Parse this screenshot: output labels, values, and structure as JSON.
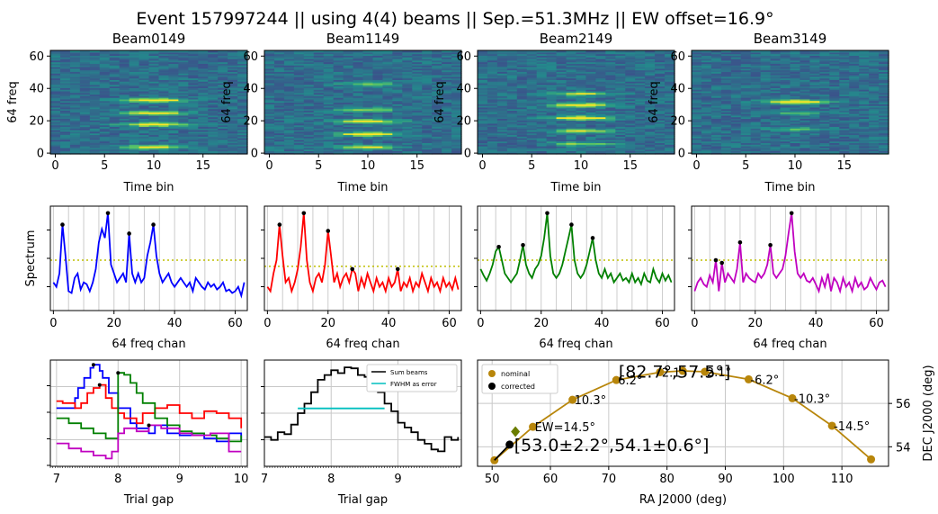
{
  "title": "Event 157997244 || using 4(4) beams || Sep.=51.3MHz || EW offset=16.9°",
  "waterfalls": [
    {
      "name": "Beam0149",
      "xlabel": "Time bin",
      "ylabel": "64 freq",
      "xticks": [
        0,
        5,
        10,
        15
      ],
      "yticks": [
        0,
        20,
        40,
        60
      ],
      "bands": [
        {
          "f": 4,
          "s": 0.8
        },
        {
          "f": 18,
          "s": 0.9
        },
        {
          "f": 25,
          "s": 0.85
        },
        {
          "f": 33,
          "s": 0.95
        }
      ]
    },
    {
      "name": "Beam1149",
      "xlabel": "Time bin",
      "ylabel": "64 freq",
      "xticks": [
        0,
        5,
        10,
        15
      ],
      "yticks": [
        0,
        20,
        40,
        60
      ],
      "bands": [
        {
          "f": 4,
          "s": 0.7
        },
        {
          "f": 12,
          "s": 0.9
        },
        {
          "f": 20,
          "s": 0.85
        },
        {
          "f": 27,
          "s": 0.5
        },
        {
          "f": 43,
          "s": 0.4
        }
      ]
    },
    {
      "name": "Beam2149",
      "xlabel": "Time bin",
      "ylabel": "64 freq",
      "xticks": [
        0,
        5,
        10,
        15
      ],
      "yticks": [
        0,
        20,
        40,
        60
      ],
      "bands": [
        {
          "f": 6,
          "s": 0.5
        },
        {
          "f": 14,
          "s": 0.6
        },
        {
          "f": 22,
          "s": 0.9
        },
        {
          "f": 30,
          "s": 0.9
        },
        {
          "f": 37,
          "s": 0.6
        }
      ]
    },
    {
      "name": "Beam3149",
      "xlabel": "Time bin",
      "ylabel": "64 freq",
      "xticks": [
        0,
        5,
        10,
        15
      ],
      "yticks": [
        0,
        20,
        40,
        60
      ],
      "bands": [
        {
          "f": 32,
          "s": 1.0
        },
        {
          "f": 25,
          "s": 0.3
        },
        {
          "f": 15,
          "s": 0.3
        }
      ]
    }
  ],
  "chart_data": [
    {
      "type": "heatmap",
      "panel": "Beam0149",
      "x_range": [
        0,
        19
      ],
      "y_range": [
        0,
        63
      ]
    },
    {
      "type": "line",
      "panel": "spectrum-beam0149",
      "color": "#0000ff",
      "ylabel": "Spectrum",
      "xlabel": "64 freq chan",
      "peaks": [
        3,
        18,
        25,
        33
      ],
      "values": [
        0.2,
        0.15,
        0.3,
        0.85,
        0.5,
        0.1,
        0.08,
        0.25,
        0.3,
        0.12,
        0.2,
        0.18,
        0.1,
        0.2,
        0.35,
        0.65,
        0.8,
        0.7,
        0.98,
        0.4,
        0.3,
        0.2,
        0.25,
        0.3,
        0.2,
        0.75,
        0.3,
        0.2,
        0.3,
        0.2,
        0.25,
        0.5,
        0.65,
        0.85,
        0.5,
        0.3,
        0.2,
        0.25,
        0.3,
        0.2,
        0.15,
        0.2,
        0.25,
        0.2,
        0.15,
        0.2,
        0.1,
        0.25,
        0.2,
        0.15,
        0.12,
        0.2,
        0.15,
        0.18,
        0.12,
        0.15,
        0.2,
        0.1,
        0.12,
        0.08,
        0.1,
        0.15,
        0.05,
        0.2
      ],
      "hline": 0.45,
      "xlim": [
        -1,
        64
      ],
      "xticks": [
        0,
        20,
        40,
        60
      ]
    },
    {
      "type": "line",
      "panel": "spectrum-beam1149",
      "color": "#ff0000",
      "xlabel": "64 freq chan",
      "peaks": [
        4,
        12,
        20,
        28,
        43
      ],
      "values": [
        0.15,
        0.1,
        0.3,
        0.45,
        0.85,
        0.5,
        0.2,
        0.25,
        0.1,
        0.2,
        0.35,
        0.6,
        0.98,
        0.45,
        0.2,
        0.1,
        0.25,
        0.3,
        0.2,
        0.4,
        0.78,
        0.5,
        0.2,
        0.3,
        0.15,
        0.25,
        0.3,
        0.2,
        0.35,
        0.3,
        0.1,
        0.25,
        0.15,
        0.3,
        0.2,
        0.1,
        0.25,
        0.15,
        0.2,
        0.1,
        0.25,
        0.15,
        0.2,
        0.35,
        0.1,
        0.2,
        0.15,
        0.25,
        0.1,
        0.2,
        0.15,
        0.3,
        0.2,
        0.1,
        0.25,
        0.15,
        0.2,
        0.1,
        0.25,
        0.15,
        0.2,
        0.12,
        0.25,
        0.12
      ],
      "hline": 0.38,
      "xlim": [
        -1,
        64
      ],
      "xticks": [
        0,
        20,
        40,
        60
      ]
    },
    {
      "type": "line",
      "panel": "spectrum-beam2149",
      "color": "#008000",
      "xlabel": "64 freq chan",
      "peaks": [
        6,
        14,
        22,
        30,
        37
      ],
      "values": [
        0.35,
        0.28,
        0.22,
        0.3,
        0.4,
        0.55,
        0.6,
        0.45,
        0.3,
        0.25,
        0.2,
        0.25,
        0.3,
        0.45,
        0.62,
        0.4,
        0.3,
        0.25,
        0.35,
        0.4,
        0.5,
        0.7,
        0.98,
        0.5,
        0.3,
        0.25,
        0.3,
        0.4,
        0.55,
        0.7,
        0.85,
        0.45,
        0.3,
        0.25,
        0.3,
        0.4,
        0.55,
        0.7,
        0.45,
        0.3,
        0.25,
        0.35,
        0.25,
        0.3,
        0.2,
        0.25,
        0.3,
        0.22,
        0.25,
        0.2,
        0.3,
        0.2,
        0.25,
        0.18,
        0.3,
        0.22,
        0.2,
        0.35,
        0.25,
        0.2,
        0.3,
        0.22,
        0.28,
        0.2
      ],
      "hline": 0.45,
      "xlim": [
        -1,
        64
      ],
      "xticks": [
        0,
        20,
        40,
        60
      ]
    },
    {
      "type": "line",
      "panel": "spectrum-beam3149",
      "color": "#c000c0",
      "xlabel": "64 freq chan",
      "peaks": [
        7,
        9,
        15,
        25,
        32
      ],
      "values": [
        0.1,
        0.2,
        0.25,
        0.18,
        0.15,
        0.28,
        0.2,
        0.45,
        0.1,
        0.42,
        0.2,
        0.3,
        0.25,
        0.2,
        0.35,
        0.65,
        0.2,
        0.3,
        0.25,
        0.22,
        0.2,
        0.3,
        0.25,
        0.3,
        0.4,
        0.62,
        0.3,
        0.25,
        0.3,
        0.35,
        0.5,
        0.75,
        0.98,
        0.55,
        0.3,
        0.25,
        0.3,
        0.22,
        0.2,
        0.25,
        0.18,
        0.1,
        0.25,
        0.15,
        0.3,
        0.1,
        0.25,
        0.2,
        0.1,
        0.25,
        0.15,
        0.2,
        0.1,
        0.25,
        0.15,
        0.2,
        0.12,
        0.15,
        0.25,
        0.18,
        0.12,
        0.2,
        0.22,
        0.15
      ],
      "hline": 0.45,
      "xlim": [
        -1,
        64
      ],
      "xticks": [
        0,
        20,
        40,
        60
      ]
    },
    {
      "type": "line",
      "panel": "trial-gap-per-beam",
      "xlabel": "Trial gap",
      "xlim": [
        6.9,
        10.1
      ],
      "xticks": [
        7,
        8,
        9,
        10
      ],
      "series": [
        {
          "color": "#0000ff",
          "x": [
            7.0,
            7.15,
            7.3,
            7.35,
            7.45,
            7.55,
            7.6,
            7.7,
            7.75,
            7.85,
            8.0,
            8.2,
            8.3,
            8.5,
            8.6,
            8.8,
            9.0,
            9.2,
            9.4,
            9.6,
            9.8,
            10.0
          ],
          "y": [
            0.55,
            0.55,
            0.65,
            0.75,
            0.85,
            0.95,
            0.98,
            0.92,
            0.85,
            0.7,
            0.55,
            0.4,
            0.35,
            0.3,
            0.38,
            0.3,
            0.28,
            0.3,
            0.25,
            0.22,
            0.3,
            0.22
          ]
        },
        {
          "color": "#ff0000",
          "x": [
            7.0,
            7.1,
            7.3,
            7.4,
            7.5,
            7.6,
            7.7,
            7.8,
            7.9,
            8.0,
            8.1,
            8.3,
            8.4,
            8.6,
            8.8,
            9.0,
            9.2,
            9.4,
            9.6,
            9.8,
            10.0
          ],
          "y": [
            0.62,
            0.6,
            0.55,
            0.6,
            0.7,
            0.75,
            0.78,
            0.65,
            0.55,
            0.5,
            0.45,
            0.4,
            0.5,
            0.55,
            0.58,
            0.5,
            0.45,
            0.52,
            0.5,
            0.45,
            0.35
          ]
        },
        {
          "color": "#008000",
          "x": [
            7.0,
            7.2,
            7.4,
            7.6,
            7.8,
            8.0,
            8.1,
            8.2,
            8.3,
            8.4,
            8.6,
            8.8,
            9.0,
            9.2,
            9.4,
            9.6,
            9.8,
            10.0
          ],
          "y": [
            0.45,
            0.4,
            0.35,
            0.3,
            0.25,
            0.9,
            0.88,
            0.8,
            0.7,
            0.6,
            0.45,
            0.38,
            0.32,
            0.3,
            0.28,
            0.25,
            0.22,
            0.28
          ]
        },
        {
          "color": "#c000c0",
          "x": [
            7.0,
            7.2,
            7.4,
            7.6,
            7.8,
            7.9,
            8.0,
            8.1,
            8.3,
            8.5,
            8.7,
            9.0,
            9.2,
            9.5,
            9.8,
            10.0
          ],
          "y": [
            0.2,
            0.15,
            0.12,
            0.08,
            0.05,
            0.12,
            0.3,
            0.35,
            0.32,
            0.38,
            0.35,
            0.3,
            0.28,
            0.3,
            0.12,
            0.12
          ]
        }
      ]
    },
    {
      "type": "line",
      "panel": "trial-gap-sum",
      "xlabel": "Trial gap",
      "xlim": [
        7.0,
        9.95
      ],
      "xticks": [
        7,
        8,
        9
      ],
      "legend": [
        "Sum beams",
        "FWHM as error"
      ],
      "series": [
        {
          "name": "Sum beams",
          "color": "#000000",
          "x": [
            7.0,
            7.1,
            7.2,
            7.3,
            7.4,
            7.5,
            7.6,
            7.7,
            7.8,
            7.9,
            8.0,
            8.1,
            8.2,
            8.3,
            8.4,
            8.5,
            8.6,
            8.7,
            8.8,
            8.9,
            9.0,
            9.1,
            9.2,
            9.3,
            9.4,
            9.5,
            9.6,
            9.7,
            9.8,
            9.9
          ],
          "y": [
            0.25,
            0.22,
            0.3,
            0.28,
            0.38,
            0.5,
            0.6,
            0.72,
            0.85,
            0.9,
            0.95,
            0.92,
            0.98,
            0.97,
            0.9,
            0.88,
            0.82,
            0.72,
            0.6,
            0.52,
            0.4,
            0.35,
            0.3,
            0.22,
            0.18,
            0.12,
            0.1,
            0.25,
            0.22,
            0.25
          ]
        },
        {
          "name": "FWHM as error",
          "color": "#00bfbf",
          "x": [
            7.5,
            8.8
          ],
          "y": [
            0.55,
            0.55
          ]
        }
      ]
    },
    {
      "type": "line",
      "panel": "sky-position",
      "xlabel": "RA J2000 (deg)",
      "ylabel": "DEC J2000 (deg)",
      "xlim": [
        47.5,
        118
      ],
      "ylim": [
        53.1,
        58.0
      ],
      "xticks": [
        50,
        60,
        70,
        80,
        90,
        100,
        110
      ],
      "yticks": [
        54,
        56
      ],
      "legend": [
        "nominal",
        "corrected"
      ],
      "nominal": {
        "ra": [
          50.4,
          57.0,
          63.8,
          71.3,
          78.8,
          82.7,
          86.5,
          94.0,
          101.5,
          108.3,
          115.0
        ],
        "dec": [
          53.38,
          54.92,
          56.17,
          57.08,
          57.44,
          57.5,
          57.46,
          57.11,
          56.24,
          54.97,
          53.42
        ],
        "labels": [
          "",
          "EW=14.5°",
          "10.3°",
          "6.2°",
          "2.1°",
          "",
          "2.1°",
          "-6.2°",
          "-10.3°",
          "-14.5°",
          ""
        ]
      },
      "corrected": {
        "ra": [
          53.0
        ],
        "dec": [
          54.1
        ]
      },
      "annotations": [
        "[82.7°,57.5°]",
        "[53.0±2.2°,54.1±0.6°]"
      ]
    }
  ]
}
